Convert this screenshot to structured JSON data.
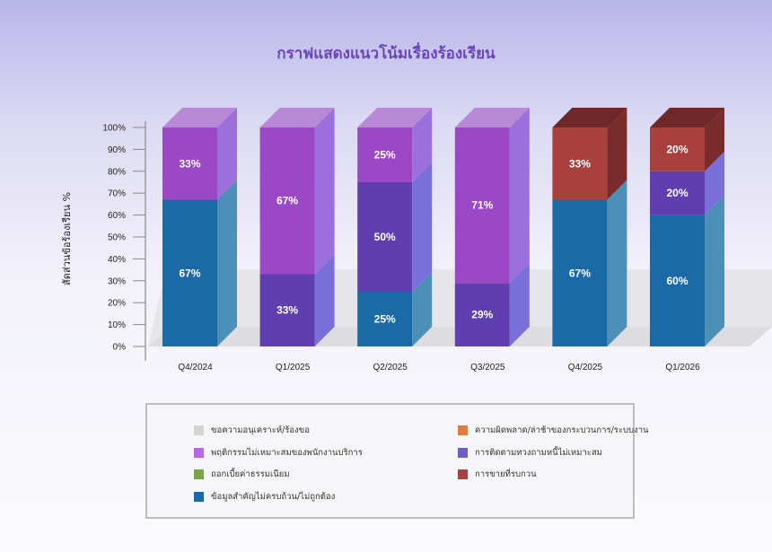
{
  "chart_data": {
    "type": "bar",
    "stacked": true,
    "percent": true,
    "title": "กราฟแสดงแนวโน้มเรื่องร้องเรียน",
    "ylabel": "สัดส่วนข้อร้องเรียน %",
    "xlabel": "",
    "ylim": [
      0,
      100
    ],
    "yticks": [
      "0%",
      "10%",
      "20%",
      "30%",
      "40%",
      "50%",
      "60%",
      "70%",
      "80%",
      "90%",
      "100%"
    ],
    "categories": [
      "Q4/2024",
      "Q1/2025",
      "Q2/2025",
      "Q3/2025",
      "Q4/2025",
      "Q1/2026"
    ],
    "legend_position": "bottom",
    "series": [
      {
        "name": "ข้อมูลสำคัญไม่ครบถ้วน/ไม่ถูกต้อง",
        "color": "#1b6aa8",
        "side": "#4c8fb7",
        "top": "#3a80b0",
        "values": [
          67,
          0,
          25,
          0,
          67,
          60
        ],
        "labels": [
          "67%",
          "",
          "25%",
          "",
          "67%",
          "60%"
        ]
      },
      {
        "name": "การติดตามทวงถามหนี้ไม่เหมาะสม",
        "color": "#5f3fb0",
        "side": "#7a6fd8",
        "top": "#6e5ccc",
        "values": [
          0,
          33,
          50,
          29,
          0,
          20
        ],
        "labels": [
          "",
          "33%",
          "50%",
          "29%",
          "",
          "20%"
        ]
      },
      {
        "name": "การขายที่รบกวน",
        "color": "#a8403e",
        "side": "#7a2c2c",
        "top": "#6e2828",
        "values": [
          0,
          0,
          0,
          0,
          33,
          20
        ],
        "labels": [
          "",
          "",
          "",
          "",
          "33%",
          "20%"
        ]
      },
      {
        "name": "พฤติกรรมไม่เหมาะสมของพนักงานบริการ",
        "color": "#9a48c6",
        "side": "#9b6fdc",
        "top": "#b88ad6",
        "values": [
          33,
          67,
          25,
          71,
          0,
          0
        ],
        "labels": [
          "33%",
          "67%",
          "25%",
          "71%",
          "",
          ""
        ]
      }
    ],
    "legend": [
      {
        "name": "ขอความอนุเคราะห์/ร้องขอ",
        "color": "#d4d4d4"
      },
      {
        "name": "ความผิดพลาด/ล่าช้าของกระบวนการ/ระบบงาน",
        "color": "#e07b39"
      },
      {
        "name": "พฤติกรรมไม่เหมาะสมของพนักงานบริการ",
        "color": "#b46ae6"
      },
      {
        "name": "การติดตามทวงถามหนี้ไม่เหมาะสม",
        "color": "#6e5ccc"
      },
      {
        "name": "ถอกเบี้ยค่าธรรมเนียม",
        "color": "#7aa548"
      },
      {
        "name": "การขายที่รบกวน",
        "color": "#a8403e"
      },
      {
        "name": "ข้อมูลสำคัญไม่ครบถ้วน/ไม่ถูกต้อง",
        "color": "#1b6aa8"
      }
    ]
  }
}
